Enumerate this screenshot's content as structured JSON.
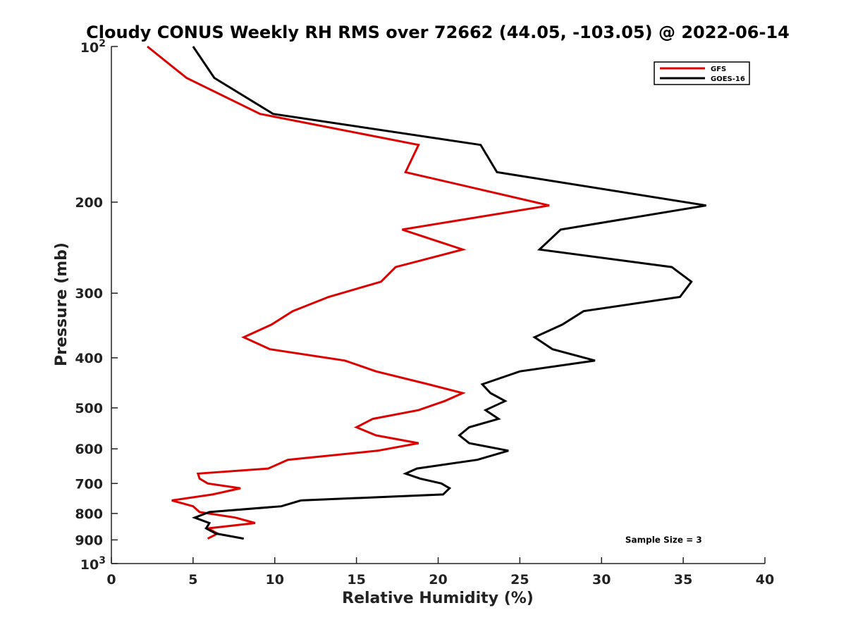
{
  "chart_data": {
    "type": "line",
    "title": "Cloudy CONUS Weekly RH RMS over 72662 (44.05, -103.05) @ 2022-06-14",
    "xlabel": "Relative Humidity (%)",
    "ylabel": "Pressure (mb)",
    "xlim": [
      0,
      40
    ],
    "ylim": [
      100,
      1000
    ],
    "y_scale": "log",
    "y_reversed": true,
    "grid": false,
    "legend_position": "top-right",
    "x_ticks": [
      0,
      5,
      10,
      15,
      20,
      25,
      30,
      35,
      40
    ],
    "x_tick_labels": [
      "0",
      "5",
      "10",
      "15",
      "20",
      "25",
      "30",
      "35",
      "40"
    ],
    "y_ticks": [
      100,
      200,
      300,
      400,
      500,
      600,
      700,
      800,
      900,
      1000
    ],
    "y_tick_labels": [
      "",
      "200",
      "300",
      "400",
      "500",
      "600",
      "700",
      "800",
      "900",
      ""
    ],
    "y_tick_base": "10",
    "y_tick_exponents": [
      "2",
      "3"
    ],
    "series": [
      {
        "name": "GFS",
        "color": "#dd0000",
        "points": [
          [
            2.2,
            100
          ],
          [
            4.6,
            115
          ],
          [
            9.1,
            135
          ],
          [
            18.8,
            155
          ],
          [
            18.0,
            175
          ],
          [
            26.8,
            203
          ],
          [
            17.8,
            226
          ],
          [
            21.5,
            247
          ],
          [
            17.4,
            267
          ],
          [
            16.5,
            285
          ],
          [
            13.3,
            305
          ],
          [
            11.1,
            325
          ],
          [
            9.8,
            345
          ],
          [
            8.1,
            365
          ],
          [
            9.7,
            385
          ],
          [
            14.3,
            405
          ],
          [
            16.2,
            425
          ],
          [
            19.4,
            450
          ],
          [
            21.5,
            468
          ],
          [
            20.4,
            485
          ],
          [
            18.8,
            505
          ],
          [
            16.0,
            525
          ],
          [
            15.0,
            545
          ],
          [
            16.2,
            565
          ],
          [
            18.8,
            585
          ],
          [
            16.3,
            605
          ],
          [
            10.8,
            630
          ],
          [
            9.6,
            655
          ],
          [
            5.3,
            670
          ],
          [
            5.4,
            685
          ],
          [
            5.9,
            700
          ],
          [
            7.9,
            715
          ],
          [
            6.2,
            735
          ],
          [
            3.7,
            755
          ],
          [
            5.0,
            775
          ],
          [
            5.4,
            795
          ],
          [
            7.6,
            815
          ],
          [
            8.8,
            835
          ],
          [
            5.9,
            855
          ],
          [
            6.5,
            875
          ],
          [
            5.9,
            895
          ]
        ]
      },
      {
        "name": "GOES-16",
        "color": "#000000",
        "points": [
          [
            5.0,
            100
          ],
          [
            6.3,
            115
          ],
          [
            9.9,
            135
          ],
          [
            22.6,
            155
          ],
          [
            23.6,
            175
          ],
          [
            36.4,
            203
          ],
          [
            27.5,
            226
          ],
          [
            26.2,
            247
          ],
          [
            34.3,
            267
          ],
          [
            35.5,
            285
          ],
          [
            34.8,
            305
          ],
          [
            28.9,
            325
          ],
          [
            27.6,
            345
          ],
          [
            25.9,
            365
          ],
          [
            27.0,
            385
          ],
          [
            29.6,
            405
          ],
          [
            25.0,
            425
          ],
          [
            22.7,
            450
          ],
          [
            23.2,
            468
          ],
          [
            24.1,
            485
          ],
          [
            22.9,
            505
          ],
          [
            23.7,
            525
          ],
          [
            21.9,
            545
          ],
          [
            21.3,
            565
          ],
          [
            21.9,
            585
          ],
          [
            24.3,
            605
          ],
          [
            22.4,
            630
          ],
          [
            18.7,
            655
          ],
          [
            18.0,
            670
          ],
          [
            18.9,
            685
          ],
          [
            20.2,
            700
          ],
          [
            20.7,
            715
          ],
          [
            20.3,
            735
          ],
          [
            11.6,
            755
          ],
          [
            10.4,
            775
          ],
          [
            6.0,
            795
          ],
          [
            5.1,
            815
          ],
          [
            6.0,
            835
          ],
          [
            5.8,
            855
          ],
          [
            6.4,
            875
          ],
          [
            8.1,
            895
          ]
        ]
      }
    ],
    "annotations": [
      {
        "text": "Sample Size = 3",
        "x": 33.8,
        "y": 900
      }
    ]
  }
}
